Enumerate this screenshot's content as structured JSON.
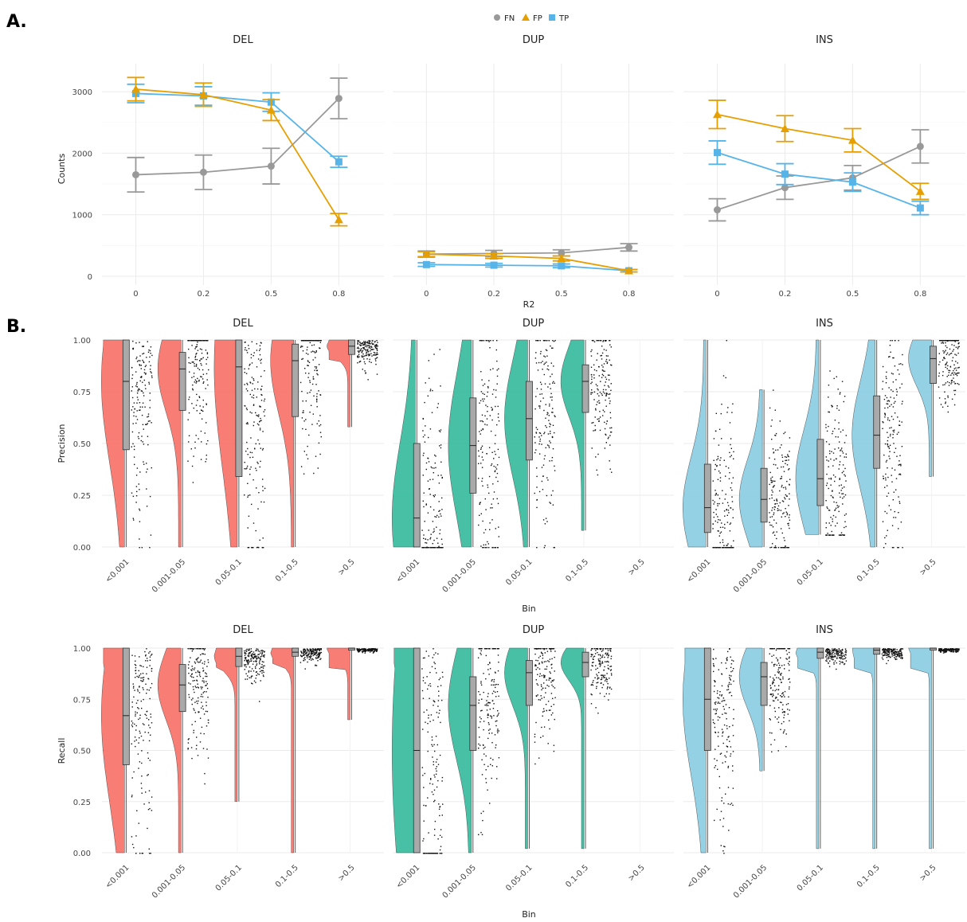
{
  "panels": {
    "a": "A.",
    "b": "B."
  },
  "legend": {
    "items": [
      {
        "label": "FN",
        "color": "#999999",
        "shape": "circle"
      },
      {
        "label": "FP",
        "color": "#E69F00",
        "shape": "triangle"
      },
      {
        "label": "TP",
        "color": "#56B4E9",
        "shape": "square"
      }
    ],
    "placement": "top-center"
  },
  "chart_data": [
    {
      "type": "line",
      "panel": "A",
      "facets": [
        "DEL",
        "DUP",
        "INS"
      ],
      "x": [
        "0",
        "0.2",
        "0.5",
        "0.8"
      ],
      "xlabel": "R2",
      "ylabel": "Counts",
      "ylim": [
        0,
        3300
      ],
      "yticks": [
        0,
        1000,
        2000,
        3000
      ],
      "grid": true,
      "series": [
        {
          "name": "FN",
          "facet": "DEL",
          "values": [
            1650,
            1690,
            1790,
            2890
          ],
          "err": [
            280,
            280,
            290,
            330
          ]
        },
        {
          "name": "FP",
          "facet": "DEL",
          "values": [
            3040,
            2950,
            2700,
            920
          ],
          "err": [
            190,
            190,
            170,
            100
          ]
        },
        {
          "name": "TP",
          "facet": "DEL",
          "values": [
            2970,
            2930,
            2830,
            1860
          ],
          "err": [
            150,
            150,
            150,
            90
          ]
        },
        {
          "name": "FN",
          "facet": "DUP",
          "values": [
            360,
            370,
            380,
            470
          ],
          "err": [
            50,
            50,
            50,
            60
          ]
        },
        {
          "name": "FP",
          "facet": "DUP",
          "values": [
            360,
            330,
            290,
            90
          ],
          "err": [
            40,
            40,
            40,
            20
          ]
        },
        {
          "name": "TP",
          "facet": "DUP",
          "values": [
            190,
            180,
            170,
            90
          ],
          "err": [
            30,
            30,
            30,
            20
          ]
        },
        {
          "name": "FN",
          "facet": "INS",
          "values": [
            1080,
            1440,
            1600,
            2110
          ],
          "err": [
            180,
            190,
            200,
            270
          ]
        },
        {
          "name": "FP",
          "facet": "INS",
          "values": [
            2630,
            2400,
            2210,
            1380
          ],
          "err": [
            230,
            210,
            190,
            130
          ]
        },
        {
          "name": "TP",
          "facet": "INS",
          "values": [
            2010,
            1660,
            1530,
            1110
          ],
          "err": [
            190,
            170,
            150,
            110
          ]
        }
      ]
    },
    {
      "type": "raincloud",
      "panel": "B-precision",
      "facets": [
        "DEL",
        "DUP",
        "INS"
      ],
      "categories": [
        "<0.001",
        "0.001-0.05",
        "0.05-0.1",
        "0.1-0.5",
        ">0.5"
      ],
      "xlabel": "Bin",
      "ylabel": "Precision",
      "ylim": [
        0,
        1
      ],
      "yticks": [
        "0.00",
        "0.25",
        "0.50",
        "0.75",
        "1.00"
      ],
      "colors": {
        "DEL": "#F8766D",
        "DUP": "#3DBDA0",
        "INS": "#8ECFE3"
      },
      "boxes": {
        "DEL": [
          {
            "q1": 0.47,
            "median": 0.8,
            "q3": 1.0,
            "wmin": 0.0,
            "wmax": 1.0
          },
          {
            "q1": 0.66,
            "median": 0.86,
            "q3": 0.94,
            "wmin": 0.0,
            "wmax": 1.0
          },
          {
            "q1": 0.34,
            "median": 0.87,
            "q3": 1.0,
            "wmin": 0.0,
            "wmax": 1.0
          },
          {
            "q1": 0.63,
            "median": 0.9,
            "q3": 0.98,
            "wmin": 0.0,
            "wmax": 1.0
          },
          {
            "q1": 0.93,
            "median": 0.97,
            "q3": 1.0,
            "wmin": 0.58,
            "wmax": 1.0
          }
        ],
        "DUP": [
          {
            "q1": 0.0,
            "median": 0.14,
            "q3": 0.5,
            "wmin": 0.0,
            "wmax": 1.0
          },
          {
            "q1": 0.26,
            "median": 0.49,
            "q3": 0.72,
            "wmin": 0.0,
            "wmax": 1.0
          },
          {
            "q1": 0.42,
            "median": 0.62,
            "q3": 0.8,
            "wmin": 0.0,
            "wmax": 1.0
          },
          {
            "q1": 0.65,
            "median": 0.8,
            "q3": 0.88,
            "wmin": 0.08,
            "wmax": 1.0
          },
          null
        ],
        "INS": [
          {
            "q1": 0.07,
            "median": 0.19,
            "q3": 0.4,
            "wmin": 0.0,
            "wmax": 1.0
          },
          {
            "q1": 0.12,
            "median": 0.23,
            "q3": 0.38,
            "wmin": 0.0,
            "wmax": 0.76
          },
          {
            "q1": 0.2,
            "median": 0.33,
            "q3": 0.52,
            "wmin": 0.06,
            "wmax": 1.0
          },
          {
            "q1": 0.38,
            "median": 0.54,
            "q3": 0.73,
            "wmin": 0.0,
            "wmax": 1.0
          },
          {
            "q1": 0.79,
            "median": 0.91,
            "q3": 0.97,
            "wmin": 0.34,
            "wmax": 1.0
          }
        ]
      }
    },
    {
      "type": "raincloud",
      "panel": "B-recall",
      "facets": [
        "DEL",
        "DUP",
        "INS"
      ],
      "categories": [
        "<0.001",
        "0.001-0.05",
        "0.05-0.1",
        "0.1-0.5",
        ">0.5"
      ],
      "xlabel": "Bin",
      "ylabel": "Recall",
      "ylim": [
        0,
        1
      ],
      "yticks": [
        "0.00",
        "0.25",
        "0.50",
        "0.75",
        "1.00"
      ],
      "colors": {
        "DEL": "#F8766D",
        "DUP": "#3DBDA0",
        "INS": "#8ECFE3"
      },
      "boxes": {
        "DEL": [
          {
            "q1": 0.43,
            "median": 0.67,
            "q3": 1.0,
            "wmin": 0.0,
            "wmax": 1.0
          },
          {
            "q1": 0.69,
            "median": 0.82,
            "q3": 0.92,
            "wmin": 0.0,
            "wmax": 1.0
          },
          {
            "q1": 0.91,
            "median": 0.96,
            "q3": 1.0,
            "wmin": 0.25,
            "wmax": 1.0
          },
          {
            "q1": 0.96,
            "median": 0.98,
            "q3": 1.0,
            "wmin": 0.0,
            "wmax": 1.0
          },
          {
            "q1": 0.99,
            "median": 1.0,
            "q3": 1.0,
            "wmin": 0.65,
            "wmax": 1.0
          }
        ],
        "DUP": [
          {
            "q1": 0.0,
            "median": 0.5,
            "q3": 1.0,
            "wmin": 0.0,
            "wmax": 1.0
          },
          {
            "q1": 0.5,
            "median": 0.72,
            "q3": 0.86,
            "wmin": 0.0,
            "wmax": 1.0
          },
          {
            "q1": 0.72,
            "median": 0.88,
            "q3": 0.94,
            "wmin": 0.02,
            "wmax": 1.0
          },
          {
            "q1": 0.86,
            "median": 0.93,
            "q3": 0.98,
            "wmin": 0.02,
            "wmax": 1.0
          },
          null
        ],
        "INS": [
          {
            "q1": 0.5,
            "median": 0.75,
            "q3": 1.0,
            "wmin": 0.0,
            "wmax": 1.0
          },
          {
            "q1": 0.72,
            "median": 0.86,
            "q3": 0.93,
            "wmin": 0.4,
            "wmax": 1.0
          },
          {
            "q1": 0.95,
            "median": 0.98,
            "q3": 1.0,
            "wmin": 0.02,
            "wmax": 1.0
          },
          {
            "q1": 0.97,
            "median": 0.99,
            "q3": 1.0,
            "wmin": 0.02,
            "wmax": 1.0
          },
          {
            "q1": 0.99,
            "median": 1.0,
            "q3": 1.0,
            "wmin": 0.02,
            "wmax": 1.0
          }
        ]
      }
    }
  ]
}
